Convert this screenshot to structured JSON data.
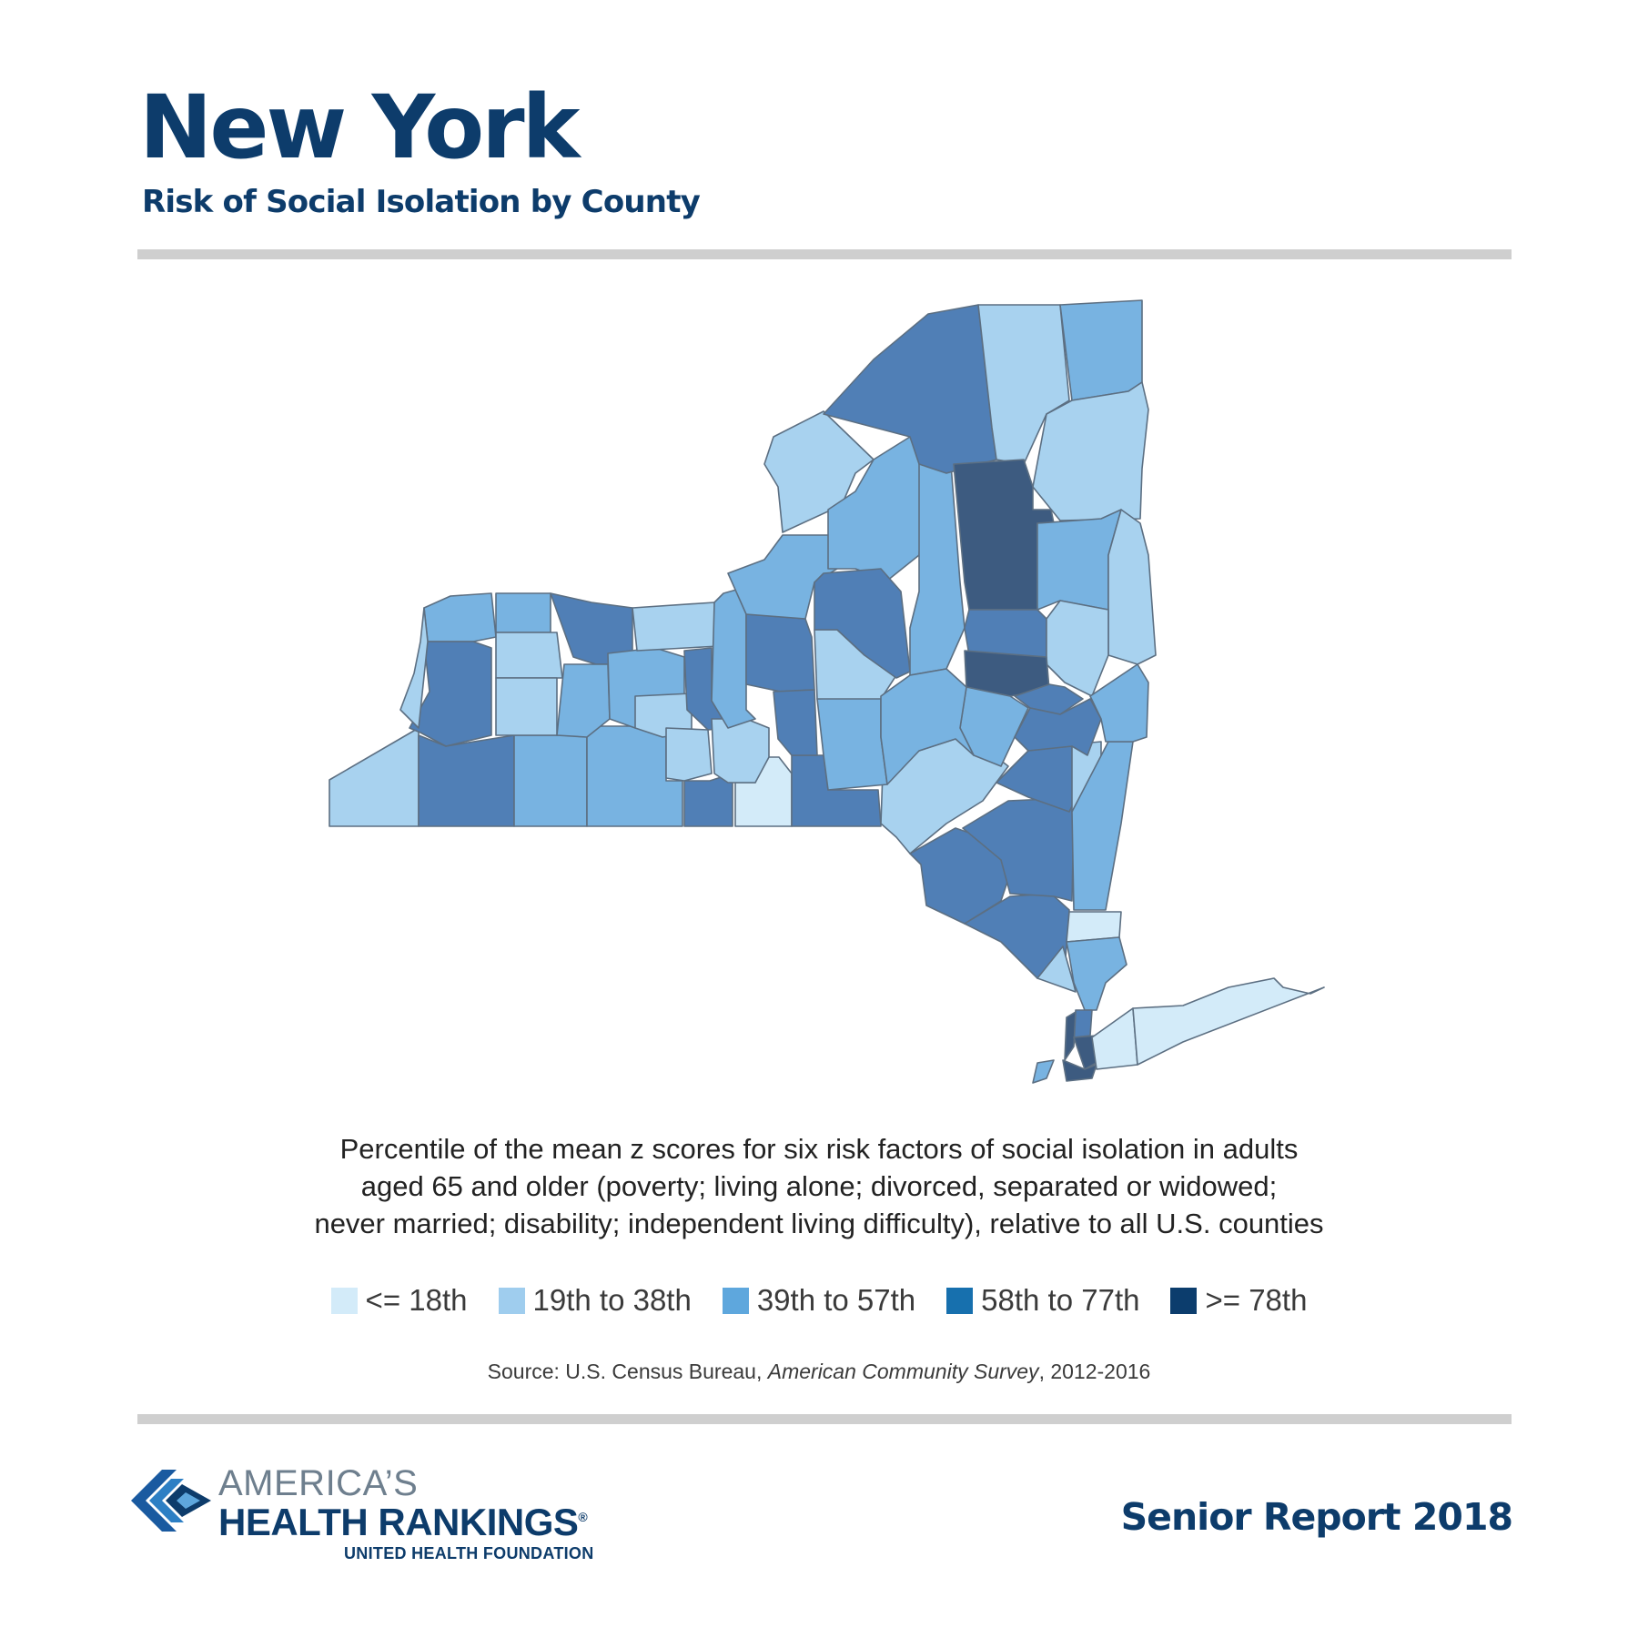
{
  "header": {
    "title": "New York",
    "subtitle": "Risk of Social Isolation by County"
  },
  "caption": {
    "lines": [
      "Percentile of the mean z scores for six risk factors of social isolation in adults",
      "aged 65 and older (poverty; living alone; divorced, separated or widowed;",
      "never married; disability; independent living difficulty), relative to all U.S. counties"
    ]
  },
  "legend": [
    {
      "label": "<= 18th",
      "color": "#d3ebf9"
    },
    {
      "label": "19th to 38th",
      "color": "#9fcdee"
    },
    {
      "label": "39th to 57th",
      "color": "#5ea7dd"
    },
    {
      "label": "58th to 77th",
      "color": "#1770ae"
    },
    {
      "label": ">= 78th",
      "color": "#0c3d6d"
    }
  ],
  "map_fill_colors": {
    "class1": "#d3ebf9",
    "class2": "#a8d2ef",
    "class3": "#78b3e1",
    "class4": "#507fb6",
    "class5": "#3d5b80"
  },
  "source": {
    "prefix": "Source: U.S. Census Bureau, ",
    "title": "American Community Survey",
    "suffix": ", 2012-2016"
  },
  "footer": {
    "logo_line1": "AMERICA’S",
    "logo_line2": "HEALTH RANKINGS",
    "logo_registered": "®",
    "logo_line3": "UNITED HEALTH FOUNDATION",
    "report": "Senior Report 2018"
  }
}
